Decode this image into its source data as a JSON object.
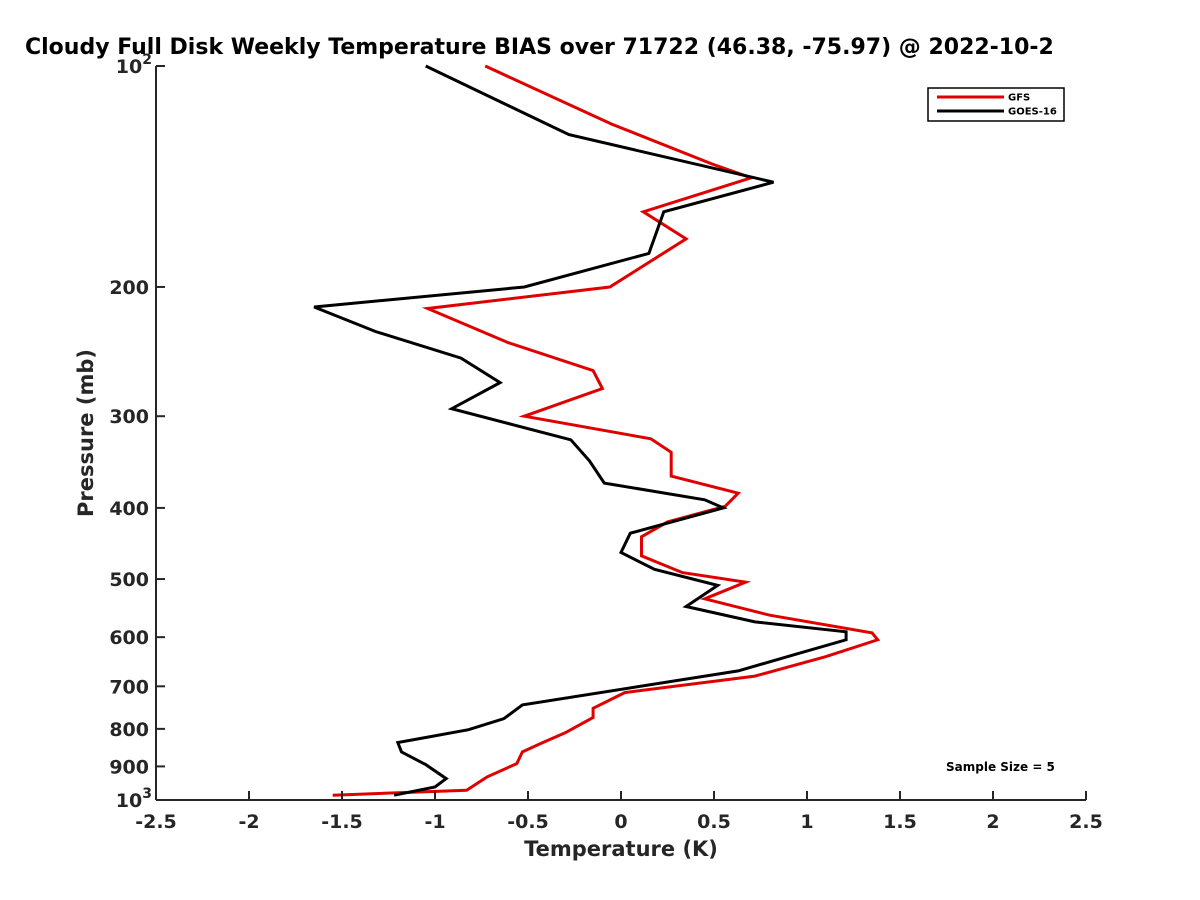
{
  "chart_data": {
    "type": "line",
    "title": "Cloudy Full Disk Weekly Temperature BIAS over 71722 (46.38, -75.97) @ 2022-10-2",
    "xlabel": "Temperature (K)",
    "ylabel": "Pressure (mb)",
    "xlim": [
      -2.5,
      2.5
    ],
    "ylim": [
      100,
      1000
    ],
    "y_scale": "log",
    "y_reversed": true,
    "x_ticks": [
      "-2.5",
      "-2",
      "-1.5",
      "-1",
      "-0.5",
      "0",
      "0.5",
      "1",
      "1.5",
      "2",
      "2.5"
    ],
    "y_ticks": [
      {
        "value": 100,
        "label": "10",
        "sup": "2"
      },
      {
        "value": 200,
        "label": "200"
      },
      {
        "value": 300,
        "label": "300"
      },
      {
        "value": 400,
        "label": "400"
      },
      {
        "value": 500,
        "label": "500"
      },
      {
        "value": 600,
        "label": "600"
      },
      {
        "value": 700,
        "label": "700"
      },
      {
        "value": 800,
        "label": "800"
      },
      {
        "value": 900,
        "label": "900"
      },
      {
        "value": 1000,
        "label": "10",
        "sup": "3"
      }
    ],
    "legend_position": "top-right",
    "annotation": "Sample Size = 5",
    "series": [
      {
        "name": "GFS",
        "color": "#e00000",
        "points": [
          [
            -0.73,
            100
          ],
          [
            -0.05,
            120
          ],
          [
            0.49,
            136
          ],
          [
            0.7,
            142
          ],
          [
            0.12,
            158
          ],
          [
            0.35,
            172
          ],
          [
            -0.06,
            200
          ],
          [
            -1.04,
            214
          ],
          [
            -0.61,
            238
          ],
          [
            -0.15,
            260
          ],
          [
            -0.1,
            275
          ],
          [
            -0.52,
            300
          ],
          [
            0.16,
            322
          ],
          [
            0.27,
            336
          ],
          [
            0.27,
            362
          ],
          [
            0.63,
            382
          ],
          [
            0.56,
            398
          ],
          [
            0.25,
            418
          ],
          [
            0.11,
            438
          ],
          [
            0.11,
            465
          ],
          [
            0.33,
            490
          ],
          [
            0.67,
            505
          ],
          [
            0.45,
            532
          ],
          [
            0.8,
            560
          ],
          [
            1.35,
            592
          ],
          [
            1.38,
            605
          ],
          [
            1.1,
            638
          ],
          [
            0.72,
            678
          ],
          [
            0.02,
            714
          ],
          [
            -0.15,
            750
          ],
          [
            -0.15,
            772
          ],
          [
            -0.3,
            810
          ],
          [
            -0.42,
            835
          ],
          [
            -0.53,
            860
          ],
          [
            -0.56,
            892
          ],
          [
            -0.72,
            930
          ],
          [
            -0.83,
            970
          ],
          [
            -1.55,
            985
          ]
        ]
      },
      {
        "name": "GOES-16",
        "color": "#000000",
        "points": [
          [
            -1.05,
            100
          ],
          [
            -0.28,
            124
          ],
          [
            0.82,
            144
          ],
          [
            0.23,
            158
          ],
          [
            0.15,
            180
          ],
          [
            -0.52,
            200
          ],
          [
            -1.65,
            213
          ],
          [
            -1.32,
            230
          ],
          [
            -0.86,
            250
          ],
          [
            -0.65,
            270
          ],
          [
            -0.91,
            293
          ],
          [
            -0.27,
            323
          ],
          [
            -0.17,
            345
          ],
          [
            -0.09,
            370
          ],
          [
            0.45,
            390
          ],
          [
            0.55,
            400
          ],
          [
            0.05,
            433
          ],
          [
            0.0,
            460
          ],
          [
            0.18,
            485
          ],
          [
            0.52,
            510
          ],
          [
            0.35,
            545
          ],
          [
            0.72,
            572
          ],
          [
            1.21,
            590
          ],
          [
            1.21,
            605
          ],
          [
            0.95,
            632
          ],
          [
            0.63,
            667
          ],
          [
            -0.53,
            742
          ],
          [
            -0.63,
            775
          ],
          [
            -0.82,
            802
          ],
          [
            -1.05,
            822
          ],
          [
            -1.2,
            835
          ],
          [
            -1.18,
            860
          ],
          [
            -1.05,
            895
          ],
          [
            -0.94,
            935
          ],
          [
            -1.0,
            960
          ],
          [
            -1.22,
            985
          ]
        ]
      }
    ]
  }
}
